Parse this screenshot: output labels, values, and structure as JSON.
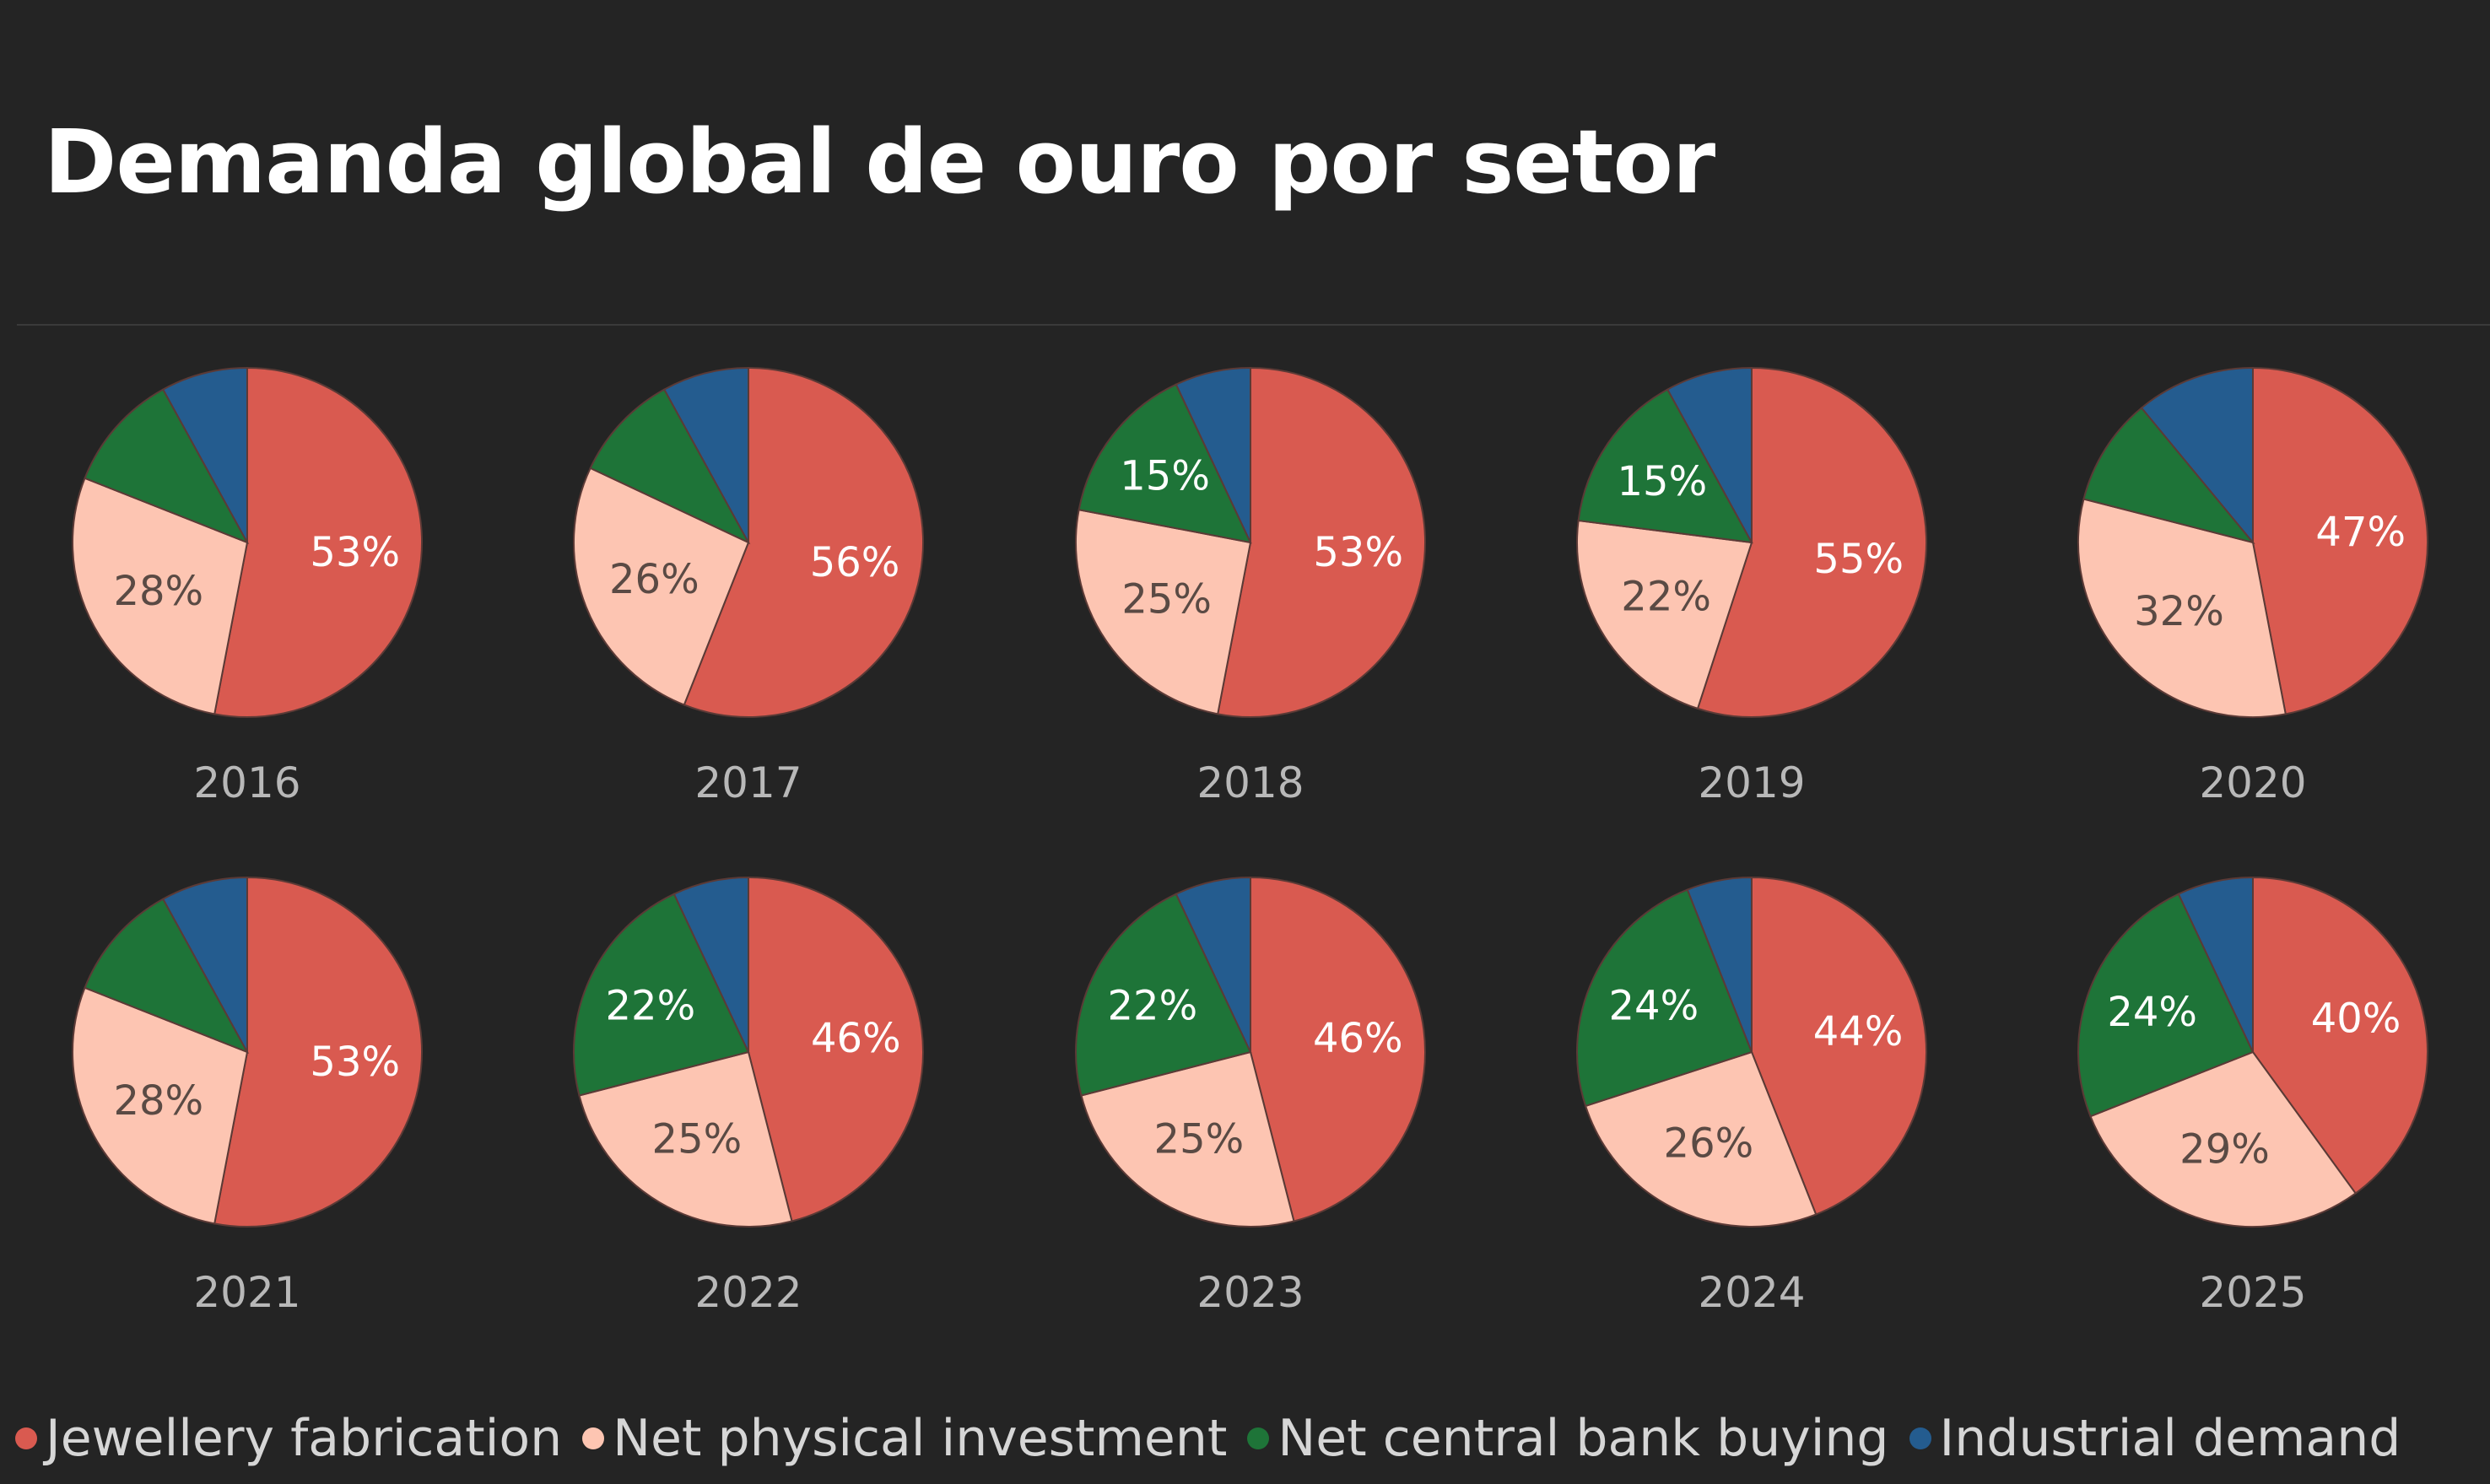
{
  "title": "Demanda global de ouro por setor",
  "colors": {
    "jewellery": "#d95a50",
    "investment": "#fdc5b2",
    "central_bank": "#1e7438",
    "industrial": "#245c8f",
    "background": "#242424",
    "label_dark": "#5a4a44",
    "label_light": "#ffffff"
  },
  "chart_data": {
    "type": "pie",
    "series_names": [
      "Jewellery fabrication",
      "Net physical investment",
      "Net central bank buying",
      "Industrial demand"
    ],
    "pies": [
      {
        "year": "2016",
        "values": [
          53,
          28,
          11,
          8
        ],
        "labels": [
          "53%",
          "28%",
          "",
          ""
        ]
      },
      {
        "year": "2017",
        "values": [
          56,
          26,
          10,
          8
        ],
        "labels": [
          "56%",
          "26%",
          "",
          ""
        ]
      },
      {
        "year": "2018",
        "values": [
          53,
          25,
          15,
          7
        ],
        "labels": [
          "53%",
          "25%",
          "15%",
          ""
        ]
      },
      {
        "year": "2019",
        "values": [
          55,
          22,
          15,
          8
        ],
        "labels": [
          "55%",
          "22%",
          "15%",
          ""
        ]
      },
      {
        "year": "2020",
        "values": [
          47,
          32,
          10,
          11
        ],
        "labels": [
          "47%",
          "32%",
          "",
          ""
        ]
      },
      {
        "year": "2021",
        "values": [
          53,
          28,
          11,
          8
        ],
        "labels": [
          "53%",
          "28%",
          "",
          ""
        ]
      },
      {
        "year": "2022",
        "values": [
          46,
          25,
          22,
          7
        ],
        "labels": [
          "46%",
          "25%",
          "22%",
          ""
        ]
      },
      {
        "year": "2023",
        "values": [
          46,
          25,
          22,
          7
        ],
        "labels": [
          "46%",
          "25%",
          "22%",
          ""
        ]
      },
      {
        "year": "2024",
        "values": [
          44,
          26,
          24,
          6
        ],
        "labels": [
          "44%",
          "26%",
          "24%",
          ""
        ]
      },
      {
        "year": "2025",
        "values": [
          40,
          29,
          24,
          7
        ],
        "labels": [
          "40%",
          "29%",
          "24%",
          ""
        ]
      }
    ]
  },
  "legend": [
    {
      "label": "Jewellery fabrication",
      "color": "#d95a50"
    },
    {
      "label": "Net physical investment",
      "color": "#fdc5b2"
    },
    {
      "label": "Net central bank buying",
      "color": "#1e7438"
    },
    {
      "label": "Industrial demand",
      "color": "#245c8f"
    }
  ]
}
